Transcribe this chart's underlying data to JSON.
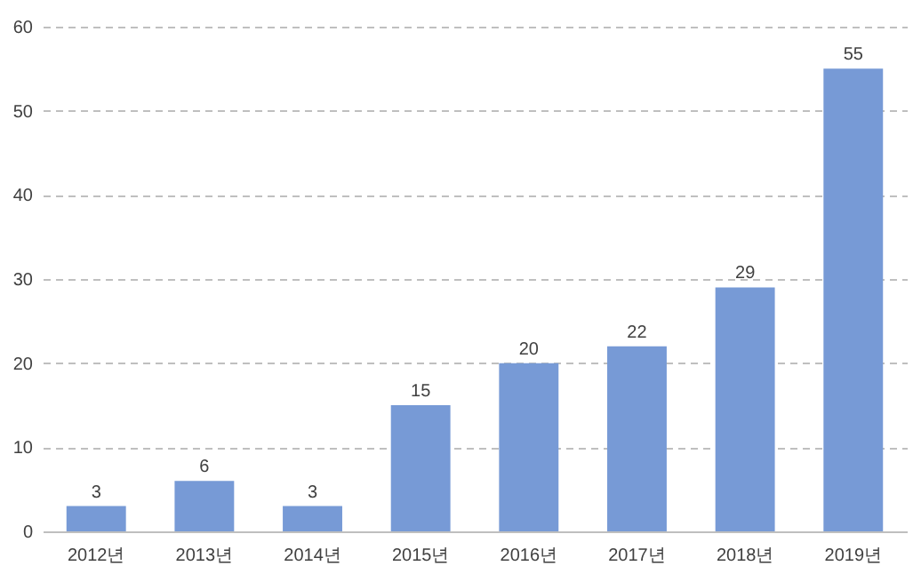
{
  "chart_data": {
    "type": "bar",
    "categories": [
      "2012년",
      "2013년",
      "2014년",
      "2015년",
      "2016년",
      "2017년",
      "2018년",
      "2019년"
    ],
    "values": [
      3,
      6,
      3,
      15,
      20,
      22,
      29,
      55
    ],
    "color": "#779ad6",
    "ylim": [
      0,
      60
    ],
    "yticks": [
      0,
      10,
      20,
      30,
      40,
      50,
      60
    ],
    "grid": "y",
    "data_labels": true
  }
}
